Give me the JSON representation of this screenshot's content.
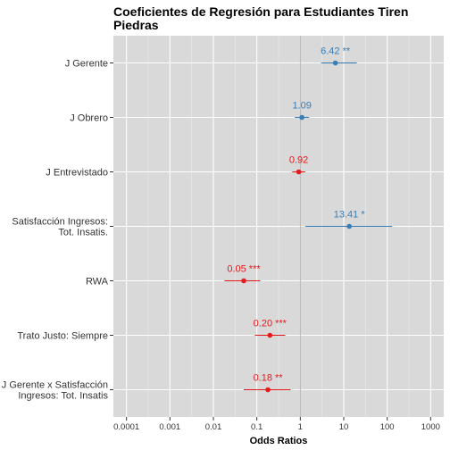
{
  "chart_data": {
    "type": "scatter",
    "title_lines": [
      "Coeficientes de Regresión para Estudiantes Tiren",
      "Piedras"
    ],
    "xlabel": "Odds Ratios",
    "x_scale": "log10",
    "xlim": [
      5e-05,
      2000
    ],
    "x_ticks": [
      "0.0001",
      "0.001",
      "0.01",
      "0.1",
      "1",
      "10",
      "100",
      "1000"
    ],
    "reference_line": 1,
    "grid": true,
    "colors": {
      "positive": "#377eb8",
      "negative": "#e41a1c"
    },
    "series": [
      {
        "label_lines": [
          "J Gerente"
        ],
        "estimate": 6.42,
        "ci": [
          3.0,
          20.0
        ],
        "label": "6.42 **",
        "direction": "positive"
      },
      {
        "label_lines": [
          "J Obrero"
        ],
        "estimate": 1.09,
        "ci": [
          0.75,
          1.6
        ],
        "label": "1.09",
        "direction": "positive"
      },
      {
        "label_lines": [
          "J Entrevistado"
        ],
        "estimate": 0.92,
        "ci": [
          0.65,
          1.3
        ],
        "label": "0.92",
        "direction": "negative"
      },
      {
        "label_lines": [
          "Satisfacción Ingresos:",
          "Tot. Insatis."
        ],
        "estimate": 13.41,
        "ci": [
          1.3,
          130.0
        ],
        "label": "13.41 *",
        "direction": "positive"
      },
      {
        "label_lines": [
          "RWA"
        ],
        "estimate": 0.05,
        "ci": [
          0.018,
          0.12
        ],
        "label": "0.05 ***",
        "direction": "negative"
      },
      {
        "label_lines": [
          "Trato Justo: Siempre"
        ],
        "estimate": 0.2,
        "ci": [
          0.09,
          0.45
        ],
        "label": "0.20 ***",
        "direction": "negative"
      },
      {
        "label_lines": [
          "J Gerente x Satisfacción",
          "Ingresos: Tot. Insatis"
        ],
        "estimate": 0.18,
        "ci": [
          0.05,
          0.6
        ],
        "label": "0.18 **",
        "direction": "negative"
      }
    ]
  }
}
